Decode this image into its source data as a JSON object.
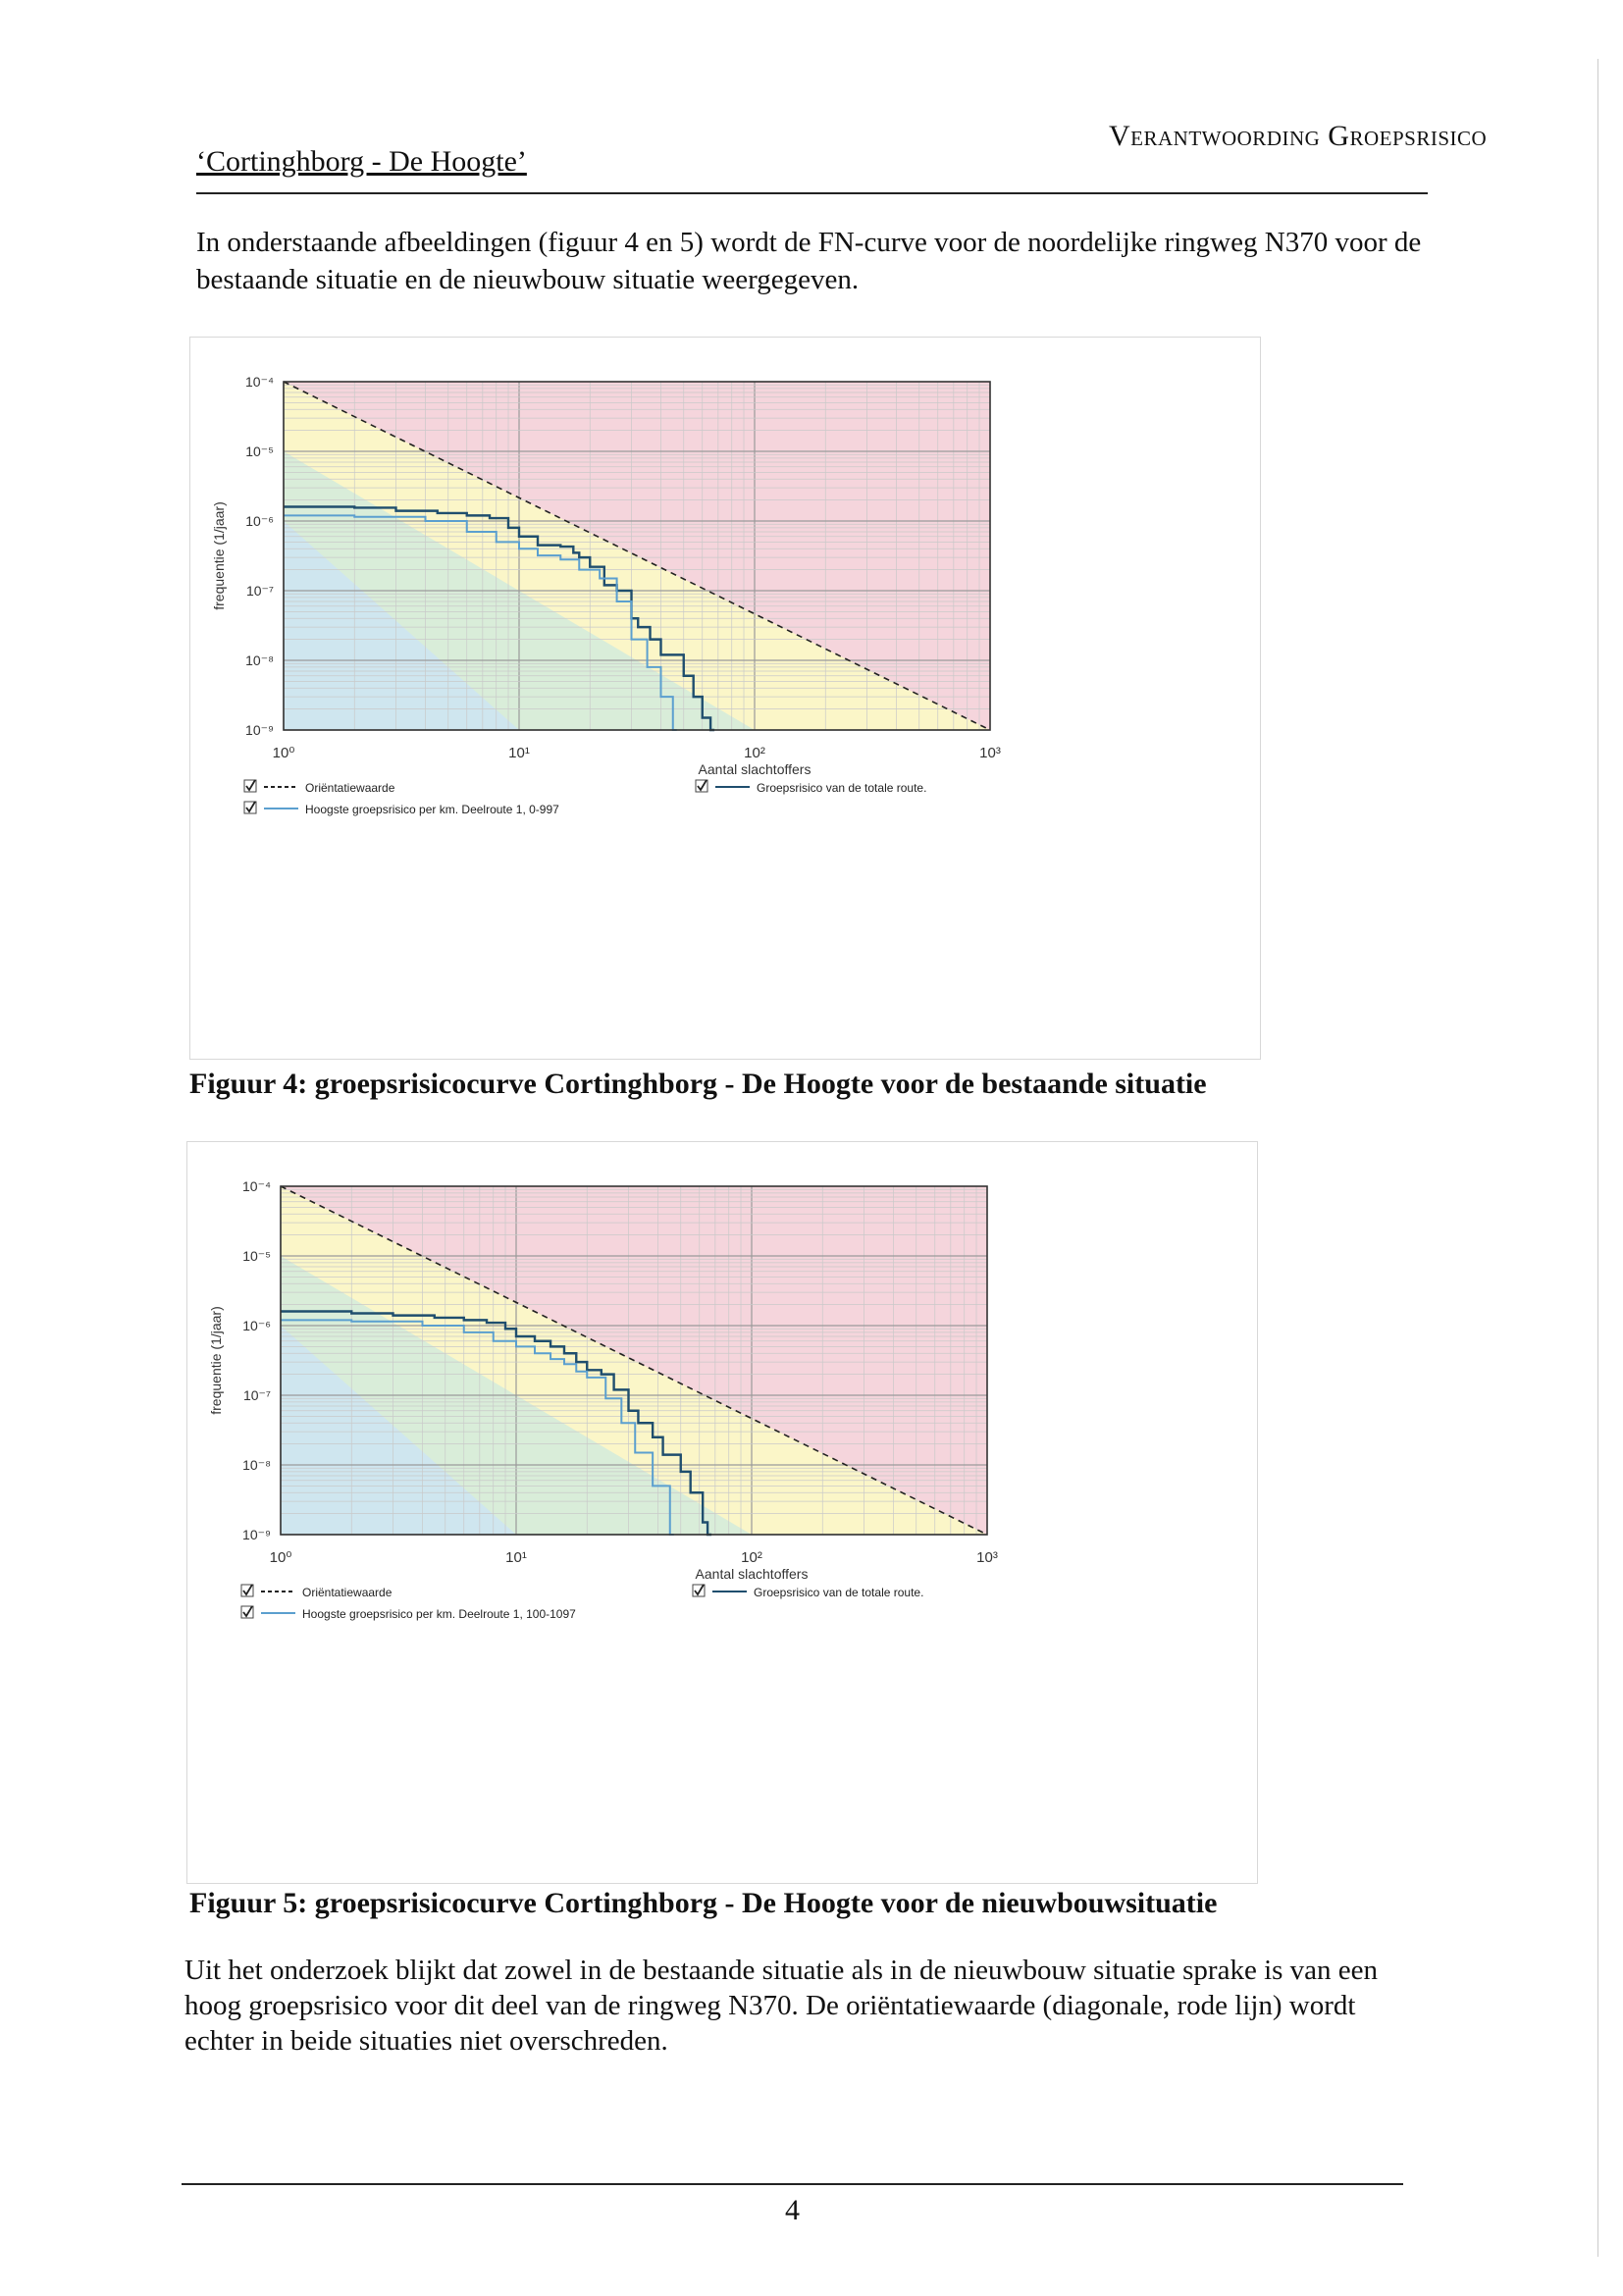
{
  "header": {
    "left": "‘Cortinghborg - De Hoogte’",
    "right": "Verantwoording Groepsrisico"
  },
  "intro": "In onderstaande afbeeldingen (figuur 4 en 5) wordt de FN-curve voor de noordelijke ringweg N370 voor de bestaande situatie en de nieuwbouw situatie weergegeven.",
  "figures": [
    {
      "caption": "Figuur 4: groepsrisicocurve Cortinghborg - De Hoogte voor de bestaande situatie",
      "legend": {
        "orientatie": "Oriëntatiewaarde",
        "hoogste": "Hoogste groepsrisico per km. Deelroute 1, 0-997",
        "totaal": "Groepsrisico van de totale route."
      }
    },
    {
      "caption": "Figuur 5: groepsrisicocurve Cortinghborg - De Hoogte voor de nieuwbouwsituatie",
      "legend": {
        "orientatie": "Oriëntatiewaarde",
        "hoogste": "Hoogste groepsrisico per km. Deelroute 1, 100-1097",
        "totaal": "Groepsrisico van de totale route."
      }
    }
  ],
  "outro": "Uit het onderzoek blijkt dat zowel in de bestaande situatie als in de nieuwbouw situatie sprake is van een hoog groepsrisico voor dit deel van de ringweg N370. De oriëntatiewaarde (diagonale, rode lijn) wordt echter in beide situaties niet overschreden.",
  "page_number": "4",
  "colors": {
    "zone_red": "#f5d5dc",
    "zone_yellow": "#fbf6c8",
    "zone_green": "#d9edd9",
    "zone_blue": "#cfe6ef",
    "curve_total": "#1f4e6e",
    "curve_hoogste": "#5b9fcf",
    "orientatie_line": "#222222"
  },
  "chart_data": [
    {
      "type": "line",
      "xlabel": "Aantal slachtoffers",
      "ylabel": "frequentie (1/jaar)",
      "x_scale": "log",
      "y_scale": "log",
      "xlim": [
        1,
        1000
      ],
      "ylim": [
        1e-09,
        0.0001
      ],
      "x_ticks": [
        "10⁰",
        "10¹",
        "10²",
        "10³"
      ],
      "y_ticks": [
        "10⁻⁴",
        "10⁻⁵",
        "10⁻⁶",
        "10⁻⁷",
        "10⁻⁸",
        "10⁻⁹"
      ],
      "grid": true,
      "legend": "bottom",
      "orientatie": {
        "x": [
          1,
          1000
        ],
        "y": [
          0.0001,
          1e-09
        ]
      },
      "series": [
        {
          "name": "Groepsrisico van de totale route.",
          "x": [
            1,
            2,
            3,
            4.5,
            6,
            7.5,
            9,
            10,
            12,
            15,
            17,
            18,
            20,
            23,
            26,
            30,
            32,
            36,
            40,
            50,
            55,
            60,
            65
          ],
          "y": [
            1.6e-06,
            1.55e-06,
            1.4e-06,
            1.3e-06,
            1.2e-06,
            1.1e-06,
            8e-07,
            6e-07,
            4.5e-07,
            4.3e-07,
            3.5e-07,
            3e-07,
            2.2e-07,
            1.2e-07,
            1e-07,
            4e-08,
            3e-08,
            2e-08,
            1.2e-08,
            6e-09,
            3e-09,
            1.5e-09,
            1e-09
          ]
        },
        {
          "name": "Hoogste groepsrisico per km. Deelroute 1, 0-997",
          "x": [
            1,
            2,
            4,
            6,
            8,
            10,
            12,
            15,
            18,
            22,
            26,
            30,
            35,
            40,
            45
          ],
          "y": [
            1.2e-06,
            1.15e-06,
            1e-06,
            7e-07,
            5e-07,
            4e-07,
            3.2e-07,
            2.8e-07,
            2e-07,
            1.5e-07,
            7e-08,
            2e-08,
            8e-09,
            3e-09,
            1e-09
          ]
        }
      ]
    },
    {
      "type": "line",
      "xlabel": "Aantal slachtoffers",
      "ylabel": "frequentie (1/jaar)",
      "x_scale": "log",
      "y_scale": "log",
      "xlim": [
        1,
        1000
      ],
      "ylim": [
        1e-09,
        0.0001
      ],
      "x_ticks": [
        "10⁰",
        "10¹",
        "10²",
        "10³"
      ],
      "y_ticks": [
        "10⁻⁴",
        "10⁻⁵",
        "10⁻⁶",
        "10⁻⁷",
        "10⁻⁸",
        "10⁻⁹"
      ],
      "grid": true,
      "legend": "bottom",
      "orientatie": {
        "x": [
          1,
          1000
        ],
        "y": [
          0.0001,
          1e-09
        ]
      },
      "series": [
        {
          "name": "Groepsrisico van de totale route.",
          "x": [
            1,
            2,
            3,
            4.5,
            6,
            7.5,
            9,
            10,
            12,
            14,
            16,
            18,
            20,
            23,
            26,
            30,
            33,
            38,
            42,
            50,
            55,
            62,
            65
          ],
          "y": [
            1.6e-06,
            1.5e-06,
            1.4e-06,
            1.3e-06,
            1.2e-06,
            1.1e-06,
            9e-07,
            7e-07,
            6e-07,
            5e-07,
            4e-07,
            3e-07,
            2.3e-07,
            2e-07,
            1.2e-07,
            6e-08,
            4e-08,
            2.5e-08,
            1.4e-08,
            8e-09,
            4e-09,
            1.5e-09,
            1e-09
          ]
        },
        {
          "name": "Hoogste groepsrisico per km. Deelroute 1, 100-1097",
          "x": [
            1,
            2,
            4,
            6,
            8,
            10,
            12,
            14,
            16,
            18,
            20,
            24,
            28,
            32,
            38,
            45
          ],
          "y": [
            1.2e-06,
            1.15e-06,
            1e-06,
            8e-07,
            6e-07,
            5e-07,
            4e-07,
            3.3e-07,
            2.8e-07,
            2.2e-07,
            1.8e-07,
            9e-08,
            4e-08,
            1.5e-08,
            5e-09,
            1e-09
          ]
        }
      ]
    }
  ]
}
